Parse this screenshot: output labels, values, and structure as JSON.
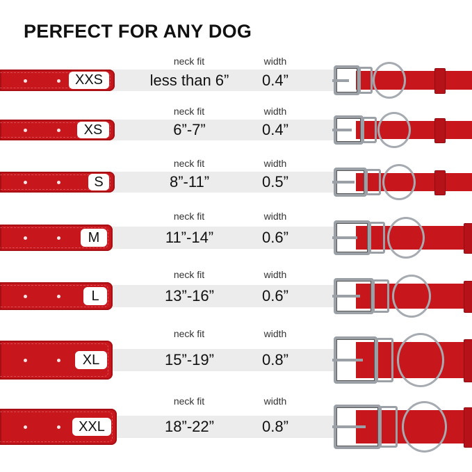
{
  "title": "PERFECT FOR ANY DOG",
  "neck_fit_label": "neck fit",
  "width_label": "width",
  "strap_color": "#c8161d",
  "band_color": "#ececec",
  "sizes": [
    {
      "size": "XXS",
      "neck_fit": "less than 6”",
      "width": "0.4”"
    },
    {
      "size": "XS",
      "neck_fit": "6”-7”",
      "width": "0.4”"
    },
    {
      "size": "S",
      "neck_fit": "8”-11”",
      "width": "0.5”"
    },
    {
      "size": "M",
      "neck_fit": "11”-14”",
      "width": "0.6”"
    },
    {
      "size": "L",
      "neck_fit": "13”-16”",
      "width": "0.6”"
    },
    {
      "size": "XL",
      "neck_fit": "15”-19”",
      "width": "0.8”"
    },
    {
      "size": "XXL",
      "neck_fit": "18”-22”",
      "width": "0.8”"
    }
  ]
}
